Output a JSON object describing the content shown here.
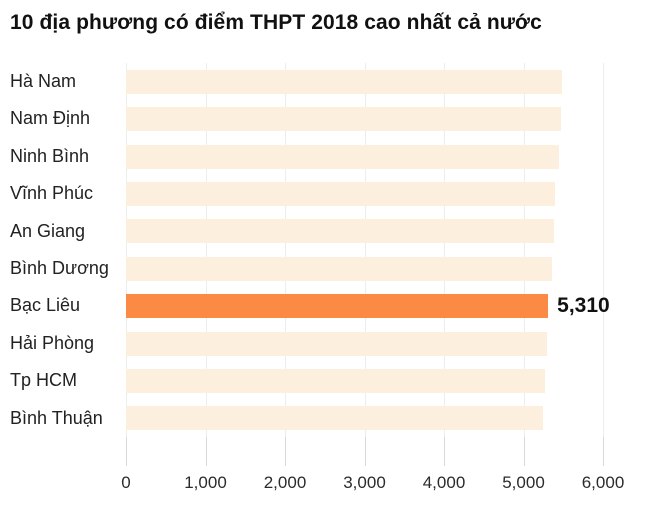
{
  "title": "10 địa phương có điểm THPT 2018 cao nhất cả nước",
  "colors": {
    "bar_default": "#fcefde",
    "bar_highlight": "#fb8a44",
    "gridline": "#ededed",
    "tick": "#d9d9d9",
    "text": "#111111"
  },
  "chart_data": {
    "type": "bar",
    "orientation": "horizontal",
    "title": "10 địa phương có điểm THPT 2018 cao nhất cả nước",
    "categories": [
      "Hà Nam",
      "Nam Định",
      "Ninh Bình",
      "Vĩnh Phúc",
      "An Giang",
      "Bình Dương",
      "Bạc Liêu",
      "Hải Phòng",
      "Tp HCM",
      "Bình Thuận"
    ],
    "values": [
      5490,
      5470,
      5450,
      5400,
      5385,
      5360,
      5310,
      5300,
      5275,
      5245
    ],
    "highlight_index": 6,
    "highlight_label": "5,310",
    "xlabel": "",
    "ylabel": "",
    "xlim": [
      0,
      6000
    ],
    "x_ticks": [
      "0",
      "1,000",
      "2,000",
      "3,000",
      "4,000",
      "5,000",
      "6,000"
    ],
    "x_tick_values": [
      0,
      1000,
      2000,
      3000,
      4000,
      5000,
      6000
    ],
    "grid": true,
    "legend": false
  }
}
